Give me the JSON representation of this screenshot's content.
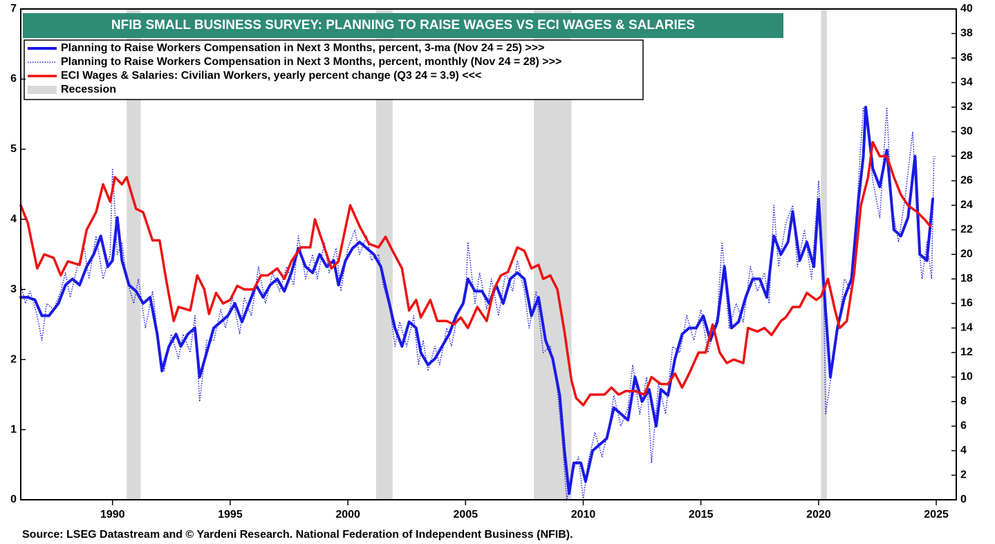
{
  "chart_data": {
    "type": "line",
    "title": "NFIB SMALL BUSINESS SURVEY: PLANNING TO RAISE WAGES VS ECI WAGES & SALARIES",
    "source": "Source: LSEG Datastream and © Yardeni Research. National Federation of Independent Business (NFIB).",
    "xlim": [
      1986.1,
      2025.85
    ],
    "xticks": [
      1990,
      1995,
      2000,
      2005,
      2010,
      2015,
      2020,
      2025
    ],
    "ylim": [
      0,
      7
    ],
    "yticks": [
      0,
      1,
      2,
      3,
      4,
      5,
      6,
      7
    ],
    "y2lim": [
      0,
      40
    ],
    "y2ticks": [
      0,
      2,
      4,
      6,
      8,
      10,
      12,
      14,
      16,
      18,
      20,
      22,
      24,
      26,
      28,
      30,
      32,
      34,
      36,
      38,
      40
    ],
    "recessions": {
      "name": "Recession",
      "color": "#d9d9d9",
      "periods": [
        [
          1990.6,
          1991.2
        ],
        [
          2001.2,
          2001.9
        ],
        [
          2007.9,
          2009.5
        ],
        [
          2020.1,
          2020.35
        ]
      ]
    },
    "series": [
      {
        "name": "Planning to Raise Workers Compensation in  Next 3 Months, percent, 3-ma (Nov 24 = 25) >>>",
        "color": "#1a1ae6",
        "style": "solid",
        "width": 4,
        "axis": "y2",
        "x": [
          1986.1,
          1986.4,
          1986.7,
          1987.0,
          1987.3,
          1987.7,
          1988.0,
          1988.3,
          1988.6,
          1988.9,
          1989.2,
          1989.5,
          1989.8,
          1990.0,
          1990.2,
          1990.4,
          1990.7,
          1991.0,
          1991.3,
          1991.6,
          1991.9,
          1992.1,
          1992.4,
          1992.7,
          1992.9,
          1993.2,
          1993.5,
          1993.7,
          1994.0,
          1994.3,
          1994.6,
          1994.9,
          1995.2,
          1995.5,
          1995.8,
          1996.1,
          1996.4,
          1996.7,
          1997.0,
          1997.3,
          1997.6,
          1997.9,
          1998.2,
          1998.5,
          1998.8,
          1999.1,
          1999.4,
          1999.6,
          1999.9,
          2000.2,
          2000.5,
          2000.8,
          2001.1,
          2001.4,
          2001.7,
          2002.0,
          2002.3,
          2002.6,
          2002.9,
          2003.1,
          2003.4,
          2003.7,
          2004.0,
          2004.3,
          2004.6,
          2004.9,
          2005.1,
          2005.4,
          2005.7,
          2006.0,
          2006.3,
          2006.6,
          2006.9,
          2007.2,
          2007.5,
          2007.8,
          2008.1,
          2008.4,
          2008.7,
          2009.0,
          2009.2,
          2009.4,
          2009.6,
          2009.9,
          2010.1,
          2010.4,
          2010.7,
          2011.0,
          2011.3,
          2011.6,
          2011.9,
          2012.2,
          2012.5,
          2012.8,
          2013.1,
          2013.3,
          2013.6,
          2013.9,
          2014.2,
          2014.5,
          2014.8,
          2015.1,
          2015.4,
          2015.7,
          2016.0,
          2016.3,
          2016.6,
          2016.9,
          2017.2,
          2017.5,
          2017.8,
          2018.1,
          2018.4,
          2018.7,
          2018.9,
          2019.2,
          2019.5,
          2019.8,
          2020.0,
          2020.2,
          2020.5,
          2020.8,
          2021.1,
          2021.4,
          2021.7,
          2021.9,
          2022.0,
          2022.3,
          2022.6,
          2022.9,
          2023.2,
          2023.5,
          2023.8,
          2024.1,
          2024.3,
          2024.6,
          2024.85
        ],
        "values": [
          16.5,
          16.5,
          16.3,
          15.0,
          15.0,
          16.0,
          17.5,
          18.0,
          17.5,
          19.0,
          20.0,
          21.5,
          19.0,
          19.5,
          23.0,
          19.5,
          17.5,
          17.0,
          16.0,
          16.5,
          13.5,
          10.5,
          12.5,
          13.5,
          12.5,
          13.5,
          14.0,
          10.0,
          12.0,
          14.0,
          14.5,
          15.0,
          16.0,
          14.5,
          16.0,
          17.5,
          16.5,
          17.5,
          18.0,
          17.0,
          18.5,
          20.5,
          19.0,
          18.5,
          20.0,
          19.0,
          19.5,
          17.5,
          19.5,
          20.5,
          21.0,
          20.5,
          20.0,
          19.0,
          16.5,
          14.0,
          12.5,
          14.5,
          14.0,
          12.0,
          11.0,
          11.5,
          12.5,
          13.5,
          15.0,
          16.0,
          18.0,
          17.0,
          17.0,
          16.0,
          17.5,
          16.0,
          18.0,
          18.5,
          18.0,
          15.0,
          16.5,
          13.0,
          11.5,
          8.5,
          4.0,
          0.5,
          3.0,
          3.0,
          1.5,
          4.0,
          4.5,
          5.0,
          7.5,
          7.0,
          6.5,
          10.0,
          8.0,
          9.0,
          6.0,
          9.0,
          8.5,
          11.5,
          13.5,
          14.0,
          14.0,
          15.0,
          13.0,
          14.5,
          19.0,
          14.0,
          14.5,
          16.5,
          18.0,
          18.0,
          16.5,
          21.5,
          20.0,
          21.0,
          23.5,
          19.5,
          21.0,
          19.0,
          24.5,
          18.0,
          10.0,
          14.0,
          16.5,
          18.0,
          24.5,
          28.0,
          32.0,
          27.0,
          25.5,
          28.5,
          22.0,
          21.5,
          23.0,
          28.0,
          20.0,
          19.5,
          24.5
        ]
      },
      {
        "name": "Planning to Raise Workers Compensation in  Next 3 Months, percent, monthly (Nov 24 = 28) >>>",
        "color": "#1a1ae6",
        "style": "dotted",
        "width": 1.5,
        "axis": "y2",
        "x": [
          1986.1,
          1986.3,
          1986.5,
          1986.8,
          1987.0,
          1987.2,
          1987.5,
          1987.8,
          1988.0,
          1988.2,
          1988.5,
          1988.8,
          1989.0,
          1989.3,
          1989.6,
          1989.9,
          1990.0,
          1990.2,
          1990.4,
          1990.6,
          1990.9,
          1991.1,
          1991.4,
          1991.7,
          1992.0,
          1992.2,
          1992.5,
          1992.8,
          1993.0,
          1993.3,
          1993.5,
          1993.7,
          1994.0,
          1994.3,
          1994.6,
          1994.8,
          1995.1,
          1995.4,
          1995.6,
          1995.9,
          1996.2,
          1996.5,
          1996.8,
          1997.1,
          1997.4,
          1997.7,
          1997.9,
          1998.2,
          1998.5,
          1998.7,
          1999.0,
          1999.2,
          1999.5,
          1999.7,
          2000.0,
          2000.3,
          2000.5,
          2000.8,
          2001.0,
          2001.3,
          2001.5,
          2001.8,
          2002.0,
          2002.2,
          2002.5,
          2002.8,
          2003.0,
          2003.2,
          2003.4,
          2003.7,
          2003.9,
          2004.2,
          2004.4,
          2004.7,
          2005.0,
          2005.1,
          2005.4,
          2005.6,
          2005.9,
          2006.1,
          2006.4,
          2006.7,
          2007.0,
          2007.2,
          2007.5,
          2007.7,
          2008.0,
          2008.3,
          2008.6,
          2008.9,
          2009.1,
          2009.3,
          2009.5,
          2009.8,
          2010.0,
          2010.2,
          2010.5,
          2010.8,
          2011.1,
          2011.3,
          2011.6,
          2011.9,
          2012.1,
          2012.4,
          2012.7,
          2012.9,
          2013.2,
          2013.5,
          2013.8,
          2014.1,
          2014.4,
          2014.7,
          2015.0,
          2015.3,
          2015.7,
          2015.9,
          2016.2,
          2016.5,
          2016.8,
          2017.1,
          2017.4,
          2017.7,
          2017.9,
          2018.1,
          2018.3,
          2018.6,
          2018.9,
          2019.1,
          2019.4,
          2019.7,
          2020.0,
          2020.2,
          2020.3,
          2020.6,
          2020.9,
          2021.1,
          2021.4,
          2021.7,
          2021.9,
          2022.1,
          2022.3,
          2022.6,
          2022.9,
          2023.1,
          2023.4,
          2023.7,
          2024.0,
          2024.2,
          2024.4,
          2024.6,
          2024.8,
          2024.9
        ],
        "values": [
          17.5,
          16,
          17,
          15,
          13,
          16,
          15.5,
          17,
          18.5,
          16.5,
          19,
          20.5,
          18,
          21.5,
          18,
          20,
          27,
          20,
          21,
          18,
          16,
          18,
          14,
          17,
          12,
          10.5,
          13.5,
          11.5,
          13.5,
          12,
          15,
          8,
          13,
          13,
          15.5,
          14,
          16.5,
          13.5,
          16.5,
          15,
          19,
          16,
          18.5,
          17,
          19,
          17.5,
          21.5,
          18,
          20,
          18,
          21,
          18.5,
          20.5,
          17,
          20.5,
          22,
          20,
          21.5,
          19.5,
          20,
          17.5,
          15.5,
          12.5,
          14.5,
          12.5,
          15,
          11,
          13,
          10.5,
          12.5,
          11,
          14,
          12.5,
          15.5,
          16.5,
          21,
          16,
          18.5,
          15.5,
          18,
          15,
          18.5,
          17,
          19.5,
          17,
          14,
          17,
          12,
          12.5,
          9,
          5,
          0,
          2,
          3.5,
          0,
          3,
          5.5,
          3.5,
          6,
          8.5,
          6,
          7.5,
          11,
          7,
          10,
          3,
          9.5,
          7,
          12.5,
          12,
          15,
          13,
          15.5,
          12,
          15,
          21,
          14,
          16,
          14.5,
          19,
          17,
          18.5,
          16,
          24,
          19,
          22.5,
          24,
          19,
          22,
          18,
          26,
          19,
          7,
          11,
          15,
          18,
          17,
          26,
          32,
          30,
          26,
          23,
          32,
          24,
          21,
          25,
          30,
          22,
          18,
          21,
          18,
          28
        ]
      },
      {
        "name": "ECI Wages & Salaries: Civilian Workers, yearly percent change (Q3 24 = 3.9) <<<",
        "color": "#ee1111",
        "style": "solid",
        "width": 3.5,
        "axis": "y",
        "x": [
          1986.1,
          1986.4,
          1986.8,
          1987.1,
          1987.5,
          1987.8,
          1988.1,
          1988.6,
          1988.9,
          1989.3,
          1989.6,
          1989.9,
          1990.1,
          1990.4,
          1990.6,
          1991.0,
          1991.3,
          1991.7,
          1992.0,
          1992.3,
          1992.6,
          1992.8,
          1993.3,
          1993.6,
          1993.9,
          1994.1,
          1994.4,
          1994.7,
          1995.0,
          1995.3,
          1995.6,
          1996.0,
          1996.3,
          1996.6,
          1997.0,
          1997.3,
          1997.6,
          1998.0,
          1998.4,
          1998.6,
          1998.9,
          1999.3,
          1999.6,
          2000.1,
          2000.5,
          2000.9,
          2001.3,
          2001.6,
          2001.9,
          2002.3,
          2002.6,
          2002.9,
          2003.1,
          2003.5,
          2003.8,
          2004.2,
          2004.5,
          2004.8,
          2005.1,
          2005.5,
          2005.9,
          2006.2,
          2006.5,
          2006.8,
          2007.2,
          2007.5,
          2007.8,
          2008.1,
          2008.3,
          2008.6,
          2008.9,
          2009.2,
          2009.5,
          2009.7,
          2010.0,
          2010.3,
          2010.6,
          2010.9,
          2011.2,
          2011.5,
          2011.8,
          2012.2,
          2012.6,
          2012.9,
          2013.3,
          2013.6,
          2013.9,
          2014.2,
          2014.5,
          2014.9,
          2015.2,
          2015.5,
          2015.8,
          2016.1,
          2016.4,
          2016.8,
          2017.0,
          2017.4,
          2017.7,
          2018.0,
          2018.4,
          2018.6,
          2018.9,
          2019.2,
          2019.5,
          2019.9,
          2020.1,
          2020.4,
          2020.7,
          2020.9,
          2021.2,
          2021.5,
          2021.8,
          2022.1,
          2022.3,
          2022.6,
          2022.9,
          2023.2,
          2023.5,
          2023.8,
          2024.2,
          2024.5,
          2024.75
        ],
        "values": [
          4.2,
          3.95,
          3.3,
          3.5,
          3.45,
          3.2,
          3.4,
          3.35,
          3.85,
          4.1,
          4.5,
          4.25,
          4.6,
          4.5,
          4.6,
          4.15,
          4.1,
          3.7,
          3.7,
          3.1,
          2.55,
          2.75,
          2.7,
          3.2,
          3.0,
          2.65,
          2.95,
          2.8,
          2.85,
          3.05,
          3.0,
          3.0,
          3.2,
          3.2,
          3.3,
          3.15,
          3.4,
          3.6,
          3.6,
          4.0,
          3.7,
          3.3,
          3.4,
          4.2,
          3.9,
          3.65,
          3.6,
          3.75,
          3.55,
          3.3,
          2.7,
          2.85,
          2.6,
          2.85,
          2.55,
          2.55,
          2.5,
          2.6,
          2.45,
          2.75,
          2.55,
          3.0,
          3.2,
          3.25,
          3.6,
          3.55,
          3.3,
          3.35,
          3.15,
          3.2,
          3.0,
          2.4,
          1.7,
          1.45,
          1.35,
          1.5,
          1.5,
          1.5,
          1.6,
          1.5,
          1.55,
          1.55,
          1.5,
          1.75,
          1.65,
          1.65,
          1.8,
          1.6,
          1.8,
          2.1,
          2.1,
          2.5,
          2.1,
          1.95,
          2.0,
          1.95,
          2.45,
          2.4,
          2.45,
          2.35,
          2.55,
          2.6,
          2.75,
          2.75,
          2.95,
          2.85,
          2.9,
          3.15,
          2.7,
          2.45,
          2.55,
          3.2,
          4.2,
          4.6,
          5.1,
          4.9,
          4.9,
          4.6,
          4.35,
          4.2,
          4.1,
          4.0,
          3.9
        ]
      }
    ]
  }
}
